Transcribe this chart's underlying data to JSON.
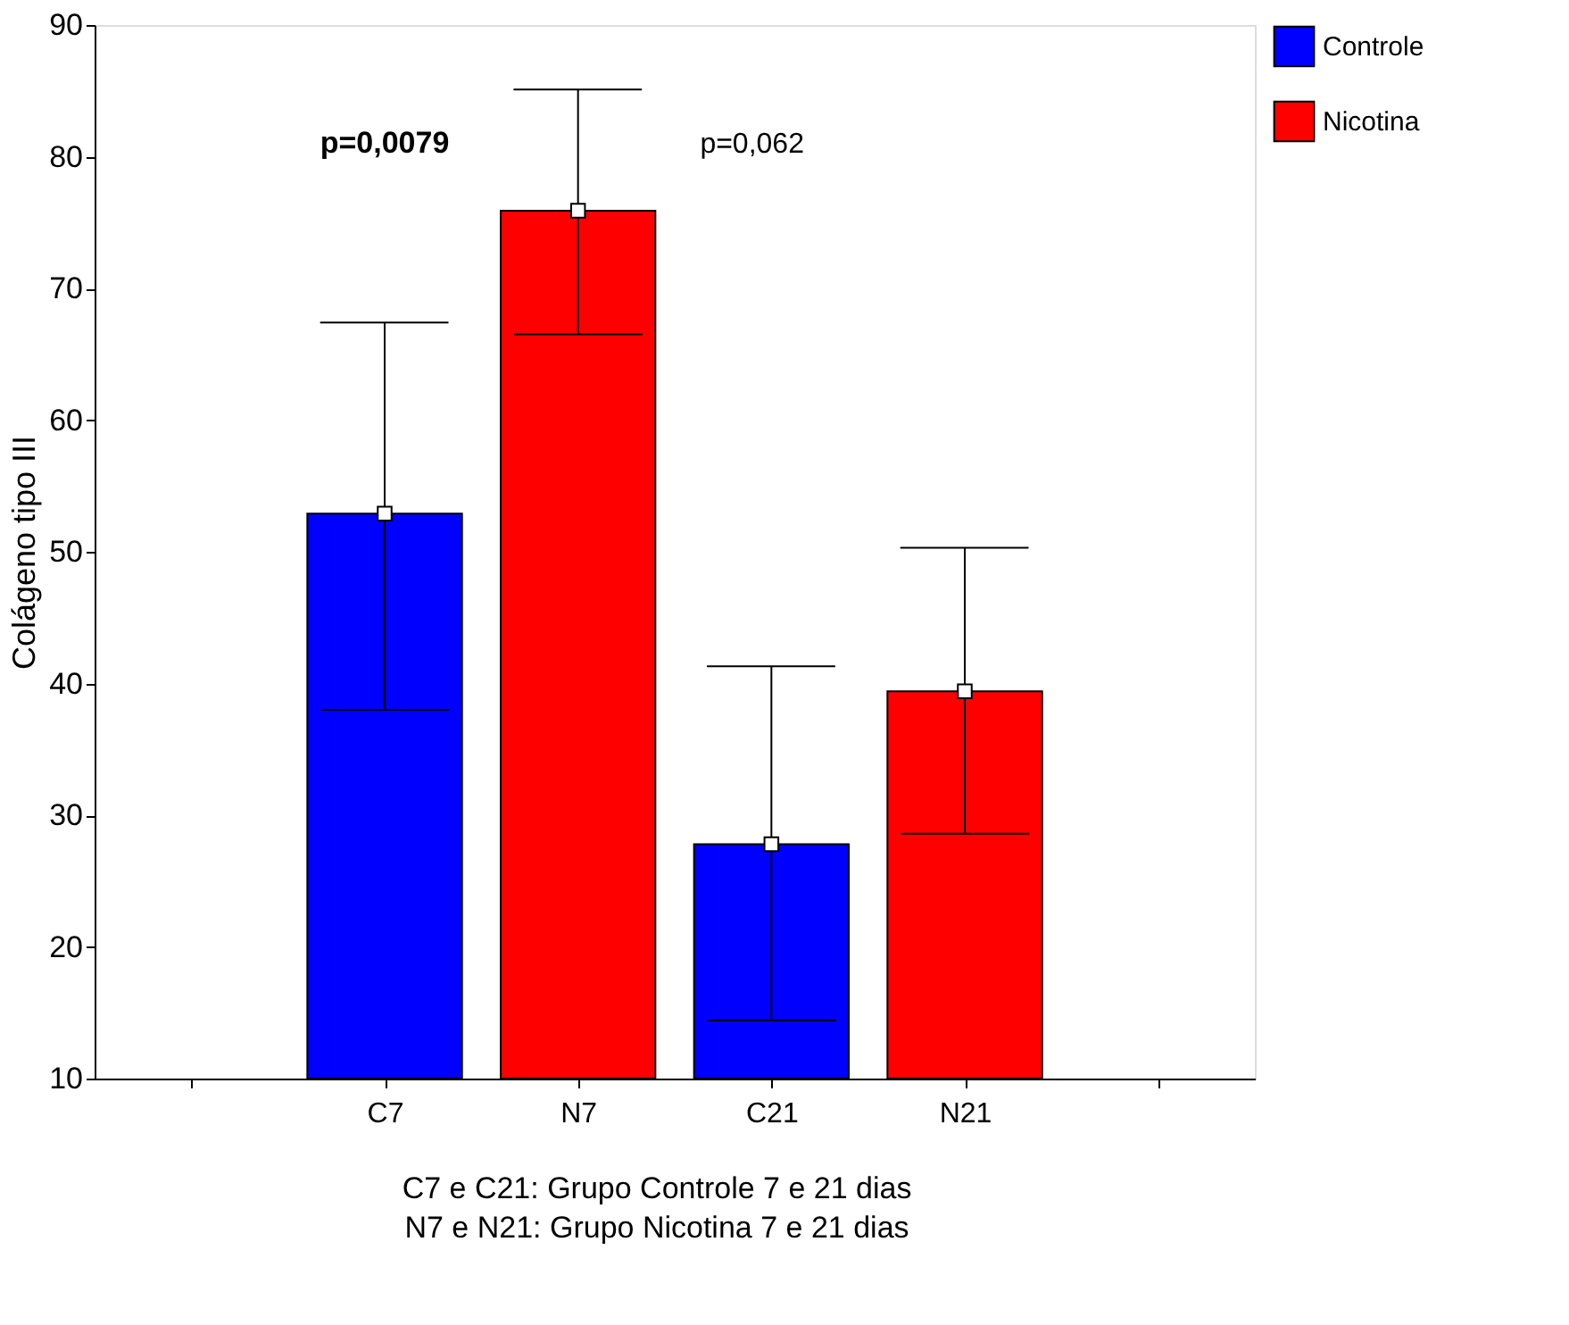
{
  "chart_data": {
    "type": "bar",
    "ylabel": "Colágeno tipo III",
    "categories": [
      null,
      "C7",
      "N7",
      "C21",
      "N21",
      null
    ],
    "series": [
      {
        "name": "Controle",
        "color": "#0000ff",
        "values": [
          null,
          52.9,
          null,
          27.8,
          null,
          null
        ],
        "errors": [
          null,
          [
            38.0,
            67.4
          ],
          null,
          [
            14.4,
            41.3
          ],
          null,
          null
        ]
      },
      {
        "name": "Nicotina",
        "color": "#ff0000",
        "values": [
          null,
          null,
          75.9,
          null,
          39.4,
          null
        ],
        "errors": [
          null,
          null,
          [
            66.5,
            85.1
          ],
          null,
          [
            28.6,
            50.3
          ],
          null
        ]
      },
      {
        "type": "scatter",
        "marker": "square",
        "color": "#ffffff",
        "x": [
          "C7",
          "N7",
          "C21",
          "N21"
        ],
        "values": [
          52.9,
          75.9,
          27.8,
          39.4
        ]
      }
    ],
    "ylim": [
      10,
      90
    ],
    "yticks": [
      10,
      20,
      30,
      40,
      50,
      60,
      70,
      80,
      90
    ],
    "grid": false,
    "legend": "right",
    "annotations": [
      "p=0,0079",
      "p=0,062",
      "C7 e C21: Grupo Controle 7 e 21 dias",
      "N7 e N21: Grupo Nicotina 7 e 21 dias"
    ]
  }
}
